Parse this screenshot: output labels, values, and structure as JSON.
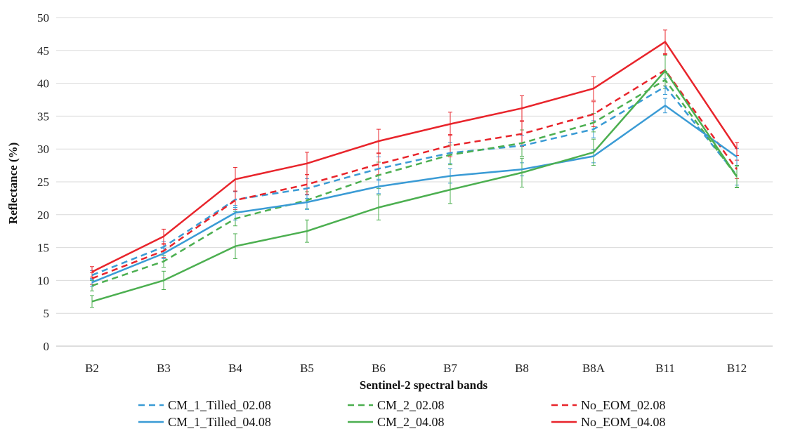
{
  "chart_data": {
    "type": "line",
    "title": "",
    "xlabel": "Sentinel-2 spectral bands",
    "ylabel": "Reflectance (%)",
    "ylim": [
      0,
      50
    ],
    "yticks": [
      0,
      5,
      10,
      15,
      20,
      25,
      30,
      35,
      40,
      45,
      50
    ],
    "grid": "horizontal",
    "legend_position": "bottom",
    "categories": [
      "B2",
      "B3",
      "B4",
      "B5",
      "B6",
      "B7",
      "B8",
      "B8A",
      "B11",
      "B12"
    ],
    "series": [
      {
        "name": "CM_1_Tilled_02.08",
        "color": "#3a9bd5",
        "dash": "dashed",
        "values": [
          10.8,
          15.1,
          22.3,
          24.0,
          27.0,
          29.4,
          30.5,
          33.0,
          39.5,
          26.0
        ],
        "errors": [
          0.7,
          0.8,
          1.2,
          1.5,
          1.8,
          1.6,
          1.6,
          1.3,
          1.2,
          1.5
        ]
      },
      {
        "name": "CM_2_02.08",
        "color": "#4caf50",
        "dash": "dashed",
        "values": [
          9.2,
          12.9,
          19.4,
          22.2,
          26.0,
          29.1,
          30.9,
          34.0,
          40.5,
          25.8
        ],
        "errors": [
          0.8,
          0.9,
          1.1,
          1.3,
          2.0,
          1.5,
          2.0,
          1.4,
          1.3,
          1.6
        ]
      },
      {
        "name": "No_EOM_02.08",
        "color": "#e8242b",
        "dash": "dashed",
        "values": [
          10.3,
          14.5,
          22.2,
          24.6,
          27.7,
          30.5,
          32.3,
          35.3,
          42.0,
          26.9
        ],
        "errors": [
          0.9,
          1.0,
          1.4,
          1.5,
          1.6,
          1.7,
          1.9,
          1.9,
          2.4,
          1.4
        ]
      },
      {
        "name": "CM_1_Tilled_04.08",
        "color": "#3a9bd5",
        "dash": "solid",
        "values": [
          9.7,
          14.1,
          20.3,
          21.9,
          24.3,
          25.9,
          26.9,
          28.9,
          36.6,
          28.8
        ],
        "errors": [
          0.6,
          0.8,
          1.1,
          1.1,
          1.1,
          1.1,
          1.0,
          1.0,
          1.1,
          1.3
        ]
      },
      {
        "name": "CM_2_04.08",
        "color": "#4caf50",
        "dash": "solid",
        "values": [
          6.8,
          10.0,
          15.2,
          17.5,
          21.1,
          23.8,
          26.4,
          29.5,
          41.9,
          25.8
        ],
        "errors": [
          0.9,
          1.4,
          1.9,
          1.7,
          1.9,
          2.1,
          2.2,
          2.0,
          2.3,
          1.7
        ]
      },
      {
        "name": "No_EOM_04.08",
        "color": "#e8242b",
        "dash": "solid",
        "values": [
          11.3,
          16.7,
          25.4,
          27.8,
          31.2,
          33.8,
          36.2,
          39.2,
          46.3,
          30.0
        ],
        "errors": [
          0.8,
          1.1,
          1.8,
          1.7,
          1.8,
          1.8,
          1.9,
          1.8,
          1.8,
          1.0
        ]
      }
    ]
  }
}
